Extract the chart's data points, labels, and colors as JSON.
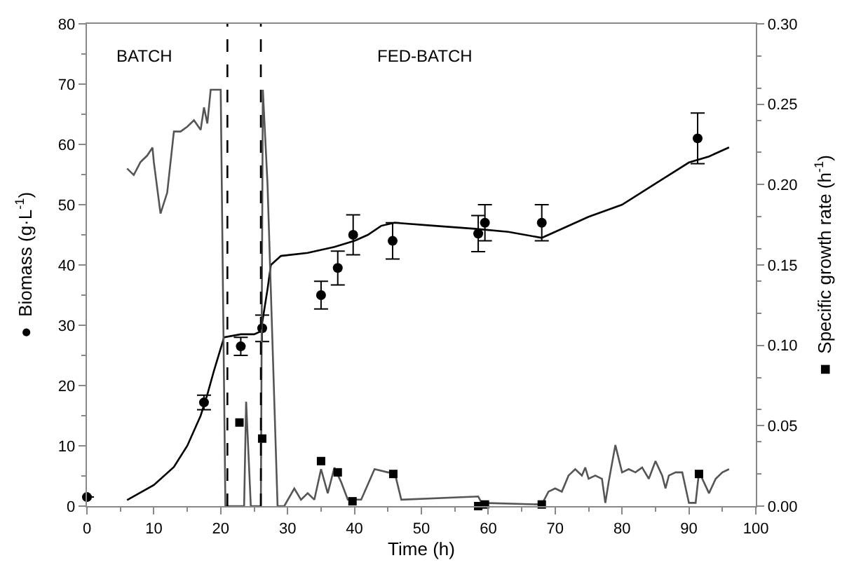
{
  "chart_data": {
    "type": "line",
    "xlabel": "Time (h)",
    "ylabel": "●  Biomass (g·L$^{-1}$)",
    "y2label": "■  Specific growth rate (h$^{-1}$)",
    "annotations": [
      "BATCH",
      "FED-BATCH"
    ],
    "xlim": [
      0,
      100
    ],
    "xticks": [
      0,
      10,
      20,
      30,
      40,
      50,
      60,
      70,
      80,
      90,
      100
    ],
    "ylim": [
      0,
      80
    ],
    "yticks": [
      0,
      10,
      20,
      30,
      40,
      50,
      60,
      70,
      80
    ],
    "y2lim": [
      0,
      0.3
    ],
    "y2ticks": [
      {
        "value": 0,
        "label": "0.00"
      },
      {
        "value": 0.05,
        "label": "0.05"
      },
      {
        "value": 0.1,
        "label": "0.10"
      },
      {
        "value": 0.15,
        "label": "0.15"
      },
      {
        "value": 0.2,
        "label": "0.20"
      },
      {
        "value": 0.25,
        "label": "0.25"
      },
      {
        "value": 0.3,
        "label": "0.30"
      }
    ],
    "ref_lines": [
      {
        "axis": "x",
        "value": 21,
        "color": "#000000",
        "line_style": "dashed"
      },
      {
        "axis": "x",
        "value": 26,
        "color": "#000000",
        "line_style": "dashed"
      }
    ],
    "series": [
      {
        "axis": "y2",
        "color": "#555555",
        "marker": "none",
        "x": [
          6,
          7,
          8,
          9,
          9.8,
          10,
          11,
          12,
          13,
          14,
          15,
          16,
          17,
          17.5,
          18,
          18.5,
          20,
          20.7,
          23.5,
          23.8,
          24.5,
          26,
          26.3,
          27,
          28.5,
          29.5,
          31,
          32,
          33,
          34,
          35,
          36,
          37,
          38,
          39,
          41,
          43,
          45,
          46,
          47,
          58.5,
          59,
          68,
          69,
          70,
          71,
          72,
          73,
          74,
          74.5,
          75,
          76,
          77,
          77.5,
          78,
          79,
          80,
          81,
          82,
          83,
          84,
          85,
          86,
          86.5,
          87,
          88,
          89,
          90,
          91,
          91.5,
          92,
          93,
          94,
          95,
          96
        ],
        "values": [
          0.21,
          0.206,
          0.214,
          0.218,
          0.223,
          0.214,
          0.182,
          0.195,
          0.233,
          0.233,
          0.236,
          0.24,
          0.234,
          0.248,
          0.238,
          0.259,
          0.259,
          0.0,
          0.0,
          0.065,
          0.0,
          0.0,
          0.259,
          0.2,
          0.0,
          0.0,
          0.011,
          0.004,
          0.008,
          0.004,
          0.023,
          0.008,
          0.024,
          0.015,
          0.004,
          0.004,
          0.023,
          0.021,
          0.021,
          0.004,
          0.006,
          0.002,
          0.001,
          0.009,
          0.011,
          0.009,
          0.019,
          0.023,
          0.019,
          0.024,
          0.017,
          0.019,
          0.017,
          0.002,
          0.015,
          0.038,
          0.021,
          0.023,
          0.021,
          0.024,
          0.017,
          0.028,
          0.019,
          0.011,
          0.019,
          0.021,
          0.021,
          0.002,
          0.002,
          0.021,
          0.017,
          0.008,
          0.017,
          0.021,
          0.023
        ]
      },
      {
        "color": "#000000",
        "marker": "none",
        "x": [
          6,
          10,
          13,
          15,
          17,
          18,
          19,
          20.5,
          23,
          25,
          26,
          27,
          27.5,
          29,
          33,
          35,
          37,
          40,
          42,
          44,
          46,
          52,
          58,
          63,
          68,
          70,
          75,
          80,
          85,
          90,
          93,
          96
        ],
        "values": [
          1,
          3.5,
          6.5,
          10,
          15,
          18.5,
          22.5,
          28,
          28.5,
          28.5,
          29,
          36,
          40,
          41.5,
          42,
          42.5,
          43,
          44,
          45,
          46.5,
          47,
          46.5,
          46,
          45.5,
          44.5,
          45.5,
          48,
          50,
          53.5,
          57,
          58,
          59.5
        ]
      },
      {
        "type": "scatter",
        "color": "#000000",
        "marker": "circle",
        "x": [
          0,
          17.5,
          23,
          26.2,
          35,
          37.5,
          39.8,
          45.7,
          58.5,
          59.5,
          68,
          91.3
        ],
        "values": [
          1.5,
          17.2,
          26.5,
          29.5,
          35,
          39.5,
          45,
          44,
          45.2,
          47,
          47,
          61
        ],
        "errors": [
          null,
          1.2,
          1.5,
          2.2,
          2.3,
          2.8,
          3.3,
          3,
          3,
          3,
          3,
          4.2
        ]
      },
      {
        "type": "scatter",
        "axis": "y2",
        "color": "#000000",
        "marker": "square",
        "x": [
          22.8,
          26.2,
          35,
          37.5,
          39.7,
          45.8,
          58.5,
          59.5,
          68,
          91.5
        ],
        "values": [
          0.052,
          0.042,
          0.028,
          0.021,
          0.003,
          0.02,
          0.0,
          0.001,
          0.001,
          0.02
        ]
      }
    ]
  }
}
